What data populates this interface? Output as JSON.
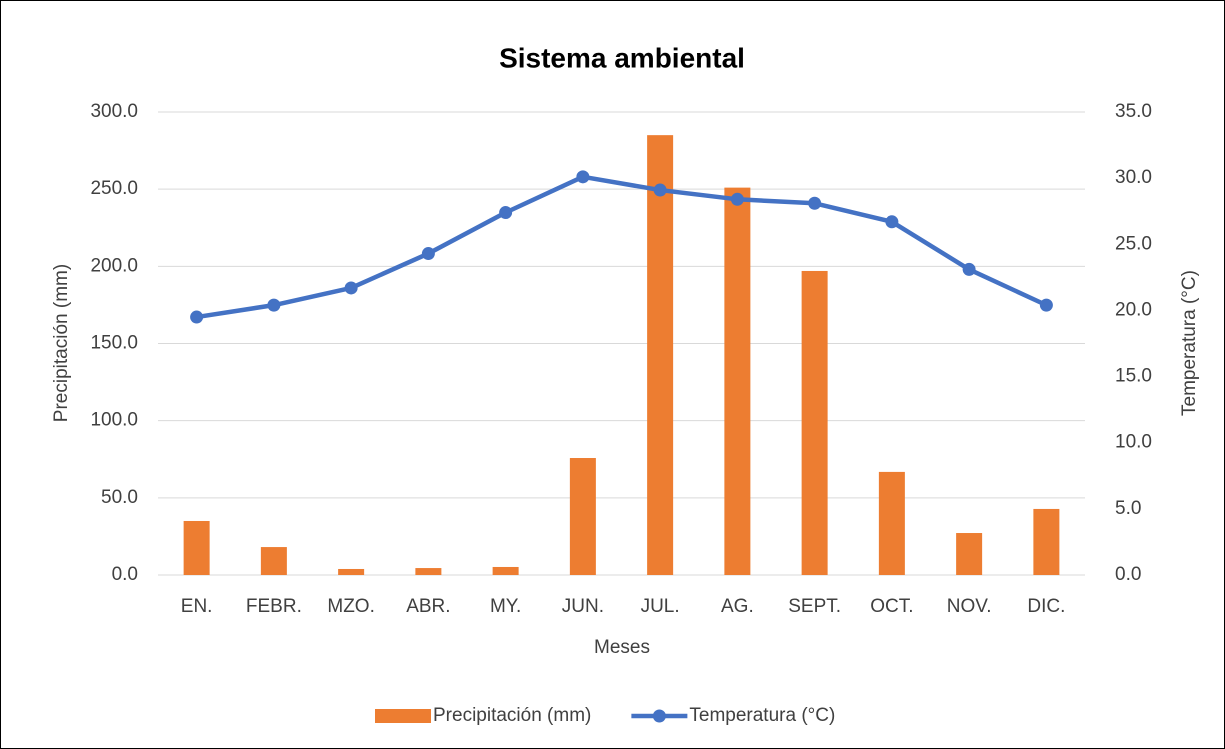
{
  "chart_data": {
    "type": "bar_line",
    "title": "Sistema ambiental",
    "x_label": "Meses",
    "y_label": "Precipitación (mm)",
    "y2_label": "Temperatura (°C)",
    "categories": [
      "EN.",
      "FEBR.",
      "MZO.",
      "ABR.",
      "MY.",
      "JUN.",
      "JUL.",
      "AG.",
      "SEPT.",
      "OCT.",
      "NOV.",
      "DIC."
    ],
    "series": [
      {
        "name": "Precipitación (mm)",
        "type": "bar",
        "color": "#ed7d31",
        "values": [
          35.0,
          18.1,
          3.9,
          4.5,
          5.2,
          75.8,
          285.0,
          251.0,
          197.0,
          66.8,
          27.2,
          42.8
        ]
      },
      {
        "name": "Temperatura (°C)",
        "type": "line",
        "axis": "y2",
        "color": "#4472c4",
        "values": [
          19.5,
          20.4,
          21.7,
          24.3,
          27.4,
          30.1,
          29.1,
          28.4,
          28.1,
          26.7,
          23.1,
          20.4
        ]
      }
    ],
    "ylim": [
      0,
      300
    ],
    "yticks": [
      {
        "value": 0,
        "label": "0.0"
      },
      {
        "value": 50,
        "label": "50.0"
      },
      {
        "value": 100,
        "label": "100.0"
      },
      {
        "value": 150,
        "label": "150.0"
      },
      {
        "value": 200,
        "label": "200.0"
      },
      {
        "value": 250,
        "label": "250.0"
      },
      {
        "value": 300,
        "label": "300.0"
      }
    ],
    "y2lim": [
      0,
      35
    ],
    "y2ticks": [
      {
        "value": 0,
        "label": "0.0"
      },
      {
        "value": 5,
        "label": "5.0"
      },
      {
        "value": 10,
        "label": "10.0"
      },
      {
        "value": 15,
        "label": "15.0"
      },
      {
        "value": 20,
        "label": "20.0"
      },
      {
        "value": 25,
        "label": "25.0"
      },
      {
        "value": 30,
        "label": "30.0"
      },
      {
        "value": 35,
        "label": "35.0"
      }
    ],
    "grid": true,
    "legend": "bottom"
  }
}
